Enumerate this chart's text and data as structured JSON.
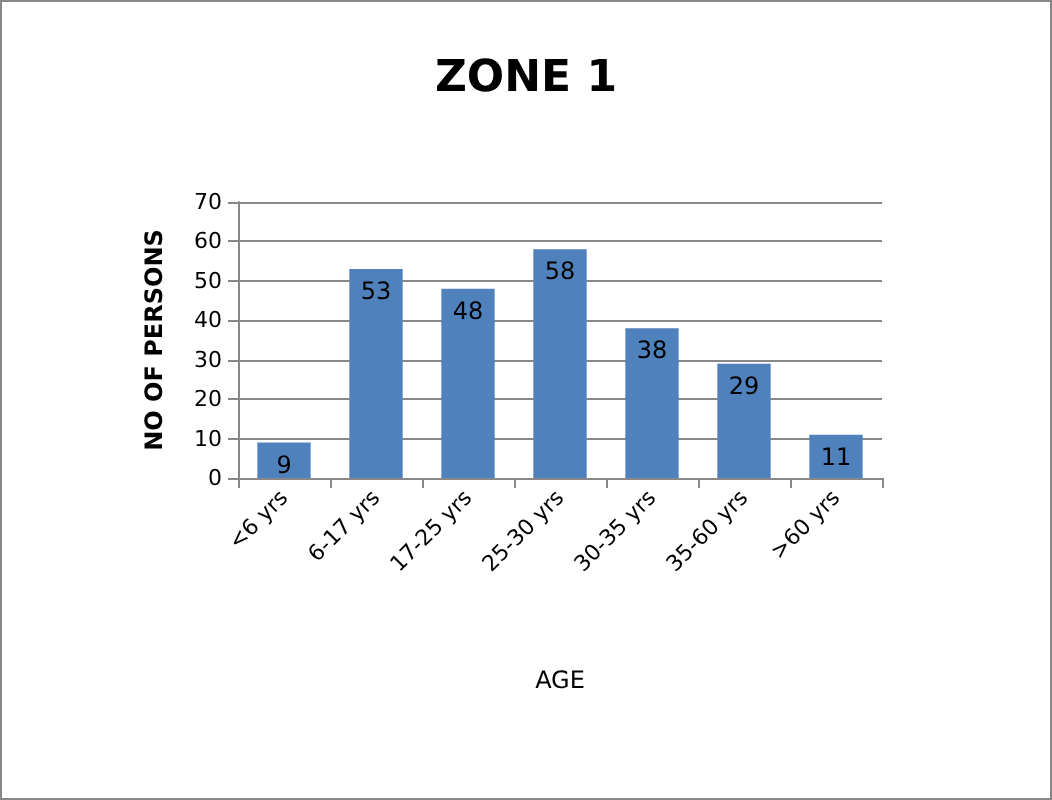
{
  "chart_data": {
    "type": "bar",
    "title": "ZONE 1",
    "xlabel": "AGE",
    "ylabel": "NO OF PERSONS",
    "categories": [
      "<6 yrs",
      "6-17 yrs",
      "17-25 yrs",
      "25-30 yrs",
      "30-35 yrs",
      "35-60 yrs",
      ">60 yrs"
    ],
    "values": [
      9,
      53,
      48,
      58,
      38,
      29,
      11
    ],
    "color": "#4f81bd",
    "ylim": [
      0,
      70
    ],
    "yticks": [
      0,
      10,
      20,
      30,
      40,
      50,
      60,
      70
    ],
    "grid": "y",
    "data_labels": true
  }
}
